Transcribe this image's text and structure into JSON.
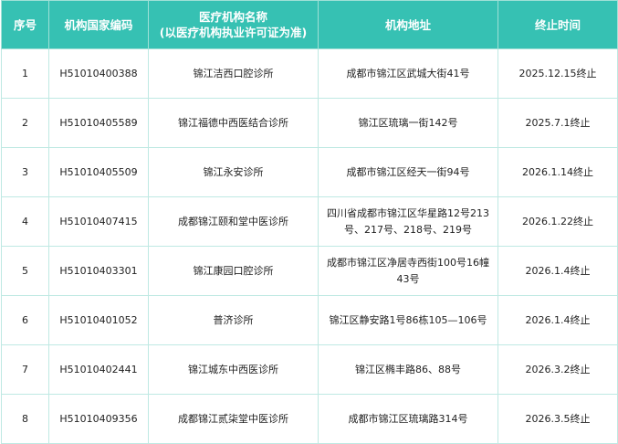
{
  "header": {
    "col_index": "序号",
    "col_code": "机构国家编码",
    "col_name_line1": "医疗机构名称",
    "col_name_line2": "(以医疗机构执业许可证为准)",
    "col_address": "机构地址",
    "col_end": "终止时间"
  },
  "rows": [
    {
      "index": "1",
      "code": "H51010400388",
      "name": "锦江洁西口腔诊所",
      "address": "成都市锦江区武城大街41号",
      "end": "2025.12.15终止"
    },
    {
      "index": "2",
      "code": "H51010405589",
      "name": "锦江福德中西医结合诊所",
      "address": "锦江区琉璃一街142号",
      "end": "2025.7.1终止"
    },
    {
      "index": "3",
      "code": "H51010405509",
      "name": "锦江永安诊所",
      "address": "成都市锦江区经天一街94号",
      "end": "2026.1.14终止"
    },
    {
      "index": "4",
      "code": "H51010407415",
      "name": "成都锦江颐和堂中医诊所",
      "address": "四川省成都市锦江区华星路12号213号、217号、218号、219号",
      "end": "2026.1.22终止"
    },
    {
      "index": "5",
      "code": "H51010403301",
      "name": "锦江康园口腔诊所",
      "address": "成都市锦江区净居寺西街100号16幢43号",
      "end": "2026.1.4终止"
    },
    {
      "index": "6",
      "code": "H51010401052",
      "name": "普济诊所",
      "address": "锦江区静安路1号86栋105—106号",
      "end": "2026.1.4终止"
    },
    {
      "index": "7",
      "code": "H51010402441",
      "name": "锦江城东中西医诊所",
      "address": "锦江区椭丰路86、88号",
      "end": "2026.3.2终止"
    },
    {
      "index": "8",
      "code": "H51010409356",
      "name": "成都锦江贰柒堂中医诊所",
      "address": "成都市锦江区琉璃路314号",
      "end": "2026.3.5终止"
    }
  ]
}
